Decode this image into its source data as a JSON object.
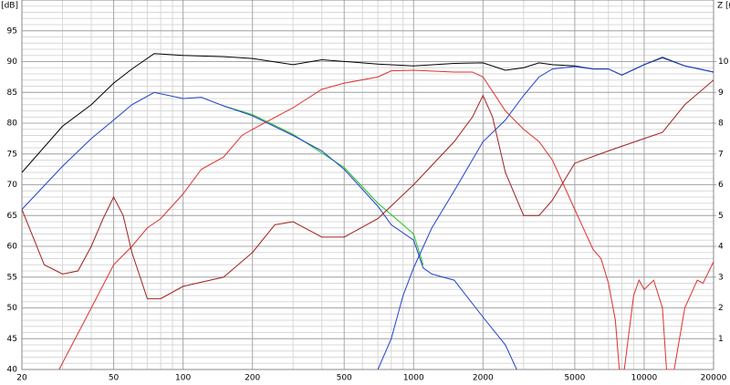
{
  "chart_data": {
    "type": "line",
    "y_label": "[dB]",
    "y2_label": "Z [Ω]",
    "log_x": true,
    "grid": true,
    "xlim": [
      20,
      20000
    ],
    "xticks": [
      20,
      50,
      100,
      200,
      500,
      1000,
      2000,
      5000,
      10000,
      20000
    ],
    "xminorticks": [
      30,
      40,
      60,
      70,
      80,
      90,
      300,
      400,
      600,
      700,
      800,
      900,
      3000,
      4000,
      6000,
      7000,
      8000,
      9000
    ],
    "ylim": [
      40,
      100
    ],
    "yticks": [
      40,
      45,
      50,
      55,
      60,
      65,
      70,
      75,
      80,
      85,
      90,
      95
    ],
    "y_minor_step": 1,
    "y2lim": [
      0,
      12
    ],
    "y2ticks": [
      1,
      2,
      3,
      4,
      5,
      6,
      7,
      8,
      9,
      10
    ],
    "series": [
      {
        "color": "#000000",
        "x": [
          20,
          30,
          40,
          50,
          60,
          75,
          100,
          150,
          200,
          300,
          400,
          700,
          1000,
          1500,
          2000,
          2500,
          3000,
          3500,
          4000,
          5000,
          6000,
          7000,
          8000,
          10000,
          12000,
          15000,
          20000
        ],
        "values": [
          72,
          79.5,
          83,
          86.5,
          88.8,
          91.3,
          91,
          90.8,
          90.5,
          89.5,
          90.3,
          89.6,
          89.3,
          89.7,
          89.8,
          88.6,
          89,
          89.8,
          89.5,
          89.3,
          88.8,
          88.8,
          87.8,
          89.5,
          90.7,
          89.3,
          88.3
        ]
      },
      {
        "color": "#20c020",
        "x": [
          150,
          200,
          300,
          500,
          700,
          900,
          1000,
          1100
        ],
        "values": [
          82.8,
          81.4,
          78.2,
          72.8,
          67,
          63.5,
          62,
          57
        ]
      },
      {
        "color": "#2040d0",
        "x": [
          20,
          30,
          40,
          50,
          60,
          75,
          100,
          120,
          150,
          200,
          300,
          400,
          500,
          700,
          800,
          1000,
          1100,
          1200,
          1500,
          2000,
          2500,
          2800
        ],
        "values": [
          66,
          73,
          77.5,
          80.5,
          83,
          85,
          84,
          84.2,
          82.8,
          81.2,
          78,
          75.5,
          72.5,
          66.5,
          63.5,
          61,
          56.5,
          55.5,
          54.5,
          48.5,
          44,
          40
        ]
      },
      {
        "color": "#2040d0",
        "x": [
          700,
          800,
          900,
          1000,
          1200,
          1500,
          2000,
          2500,
          3000,
          3500,
          4000,
          5000,
          6000,
          7000,
          8000,
          10000,
          12000,
          15000,
          20000
        ],
        "values": [
          40,
          45,
          52,
          56.5,
          63,
          69,
          77,
          80.5,
          84.5,
          87.5,
          88.8,
          89.2,
          88.8,
          88.8,
          87.8,
          89.5,
          90.6,
          89.3,
          88.3
        ]
      },
      {
        "color": "#e03030",
        "x": [
          29,
          40,
          50,
          60,
          70,
          80,
          100,
          120,
          150,
          180,
          200,
          300,
          400,
          500,
          700,
          800,
          1000,
          1500,
          1800,
          2000,
          2500,
          3000,
          3500,
          4000,
          5000,
          6000,
          6500,
          7000,
          7500,
          7800,
          8200,
          9000,
          9500,
          10000,
          11000,
          12000,
          12500,
          13500,
          15000,
          17000,
          18000,
          20000
        ],
        "values": [
          40,
          50,
          57,
          60,
          63,
          64.5,
          68.5,
          72.5,
          74.5,
          78,
          79,
          82.5,
          85.5,
          86.5,
          87.5,
          88.5,
          88.6,
          88.3,
          88.3,
          87.5,
          82,
          79,
          77,
          74,
          66,
          59.5,
          58,
          54,
          48,
          40,
          40,
          52,
          54.5,
          53,
          54.5,
          50,
          40,
          40,
          50,
          54.5,
          54,
          57.5
        ]
      },
      {
        "color": "#a02020",
        "axis": "y2",
        "x": [
          20,
          25,
          30,
          35,
          40,
          45,
          50,
          55,
          60,
          70,
          80,
          100,
          150,
          200,
          250,
          300,
          400,
          500,
          700,
          1000,
          1500,
          1800,
          2000,
          2200,
          2500,
          3000,
          3500,
          4000,
          5000,
          7000,
          10000,
          12000,
          15000,
          20000
        ],
        "values": [
          5.2,
          3.4,
          3.1,
          3.2,
          4,
          4.9,
          5.6,
          5,
          3.8,
          2.3,
          2.3,
          2.7,
          3,
          3.8,
          4.7,
          4.8,
          4.3,
          4.3,
          4.9,
          6,
          7.4,
          8.2,
          8.9,
          8.2,
          6.4,
          5,
          5,
          5.5,
          6.7,
          7.1,
          7.5,
          7.7,
          8.6,
          9.4
        ]
      }
    ]
  }
}
